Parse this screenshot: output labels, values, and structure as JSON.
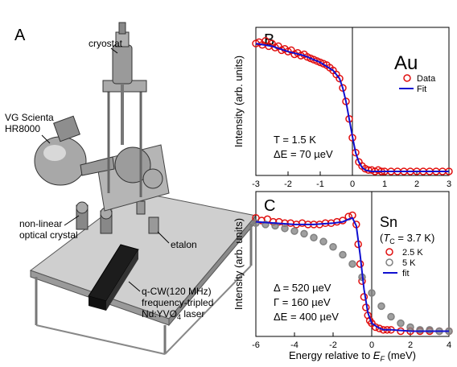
{
  "panel_a": {
    "label": "A",
    "labels": {
      "cryostat": "cryostat",
      "analyzer_line1": "VG Scienta",
      "analyzer_line2": "HR8000",
      "crystal_line1": "non-linear",
      "crystal_line2": "optical crystal",
      "etalon": "etalon",
      "laser_line1": "q-CW(120 MHz)",
      "laser_line2": "frequency-tripled",
      "laser_line3": "Nd:YVO",
      "laser_sub": "4",
      "laser_tail": " laser"
    }
  },
  "chart_data": [
    {
      "panel": "B",
      "type": "scatter",
      "title": "",
      "ylabel": "Intensity (arb. units)",
      "xlabel": "",
      "xlim": [
        -3,
        3
      ],
      "ylim": [
        0,
        1.1
      ],
      "xticks": [
        "-3",
        "-2",
        "-1",
        "0",
        "1",
        "2",
        "3"
      ],
      "sample": "Au",
      "legend": [
        "Data",
        "Fit"
      ],
      "annotation_T": "T = 1.5 K",
      "annotation_dE": "ΔE = 70 µeV",
      "series": [
        {
          "name": "Data",
          "color": "#e01010",
          "marker": "open-circle",
          "x": [
            -3.0,
            -2.9,
            -2.8,
            -2.7,
            -2.6,
            -2.5,
            -2.4,
            -2.3,
            -2.2,
            -2.1,
            -2.0,
            -1.9,
            -1.8,
            -1.7,
            -1.6,
            -1.5,
            -1.4,
            -1.3,
            -1.2,
            -1.1,
            -1.0,
            -0.9,
            -0.8,
            -0.7,
            -0.6,
            -0.5,
            -0.4,
            -0.3,
            -0.2,
            -0.1,
            0.0,
            0.1,
            0.2,
            0.3,
            0.4,
            0.5,
            0.6,
            0.7,
            0.8,
            0.9,
            1.0,
            1.2,
            1.4,
            1.6,
            1.8,
            2.0,
            2.2,
            2.4,
            2.6,
            2.8,
            3.0
          ],
          "y": [
            0.98,
            0.99,
            0.97,
            1.0,
            0.96,
            0.98,
            0.95,
            0.96,
            0.93,
            0.94,
            0.92,
            0.93,
            0.9,
            0.91,
            0.89,
            0.9,
            0.88,
            0.87,
            0.86,
            0.85,
            0.84,
            0.83,
            0.82,
            0.8,
            0.78,
            0.75,
            0.72,
            0.65,
            0.55,
            0.42,
            0.28,
            0.17,
            0.1,
            0.07,
            0.05,
            0.04,
            0.04,
            0.03,
            0.04,
            0.03,
            0.03,
            0.03,
            0.03,
            0.03,
            0.03,
            0.03,
            0.03,
            0.03,
            0.03,
            0.03,
            0.03
          ]
        },
        {
          "name": "Fit",
          "color": "#1010d0",
          "marker": "line",
          "x": [
            -3.0,
            -2.5,
            -2.0,
            -1.5,
            -1.0,
            -0.6,
            -0.4,
            -0.3,
            -0.2,
            -0.1,
            0.0,
            0.1,
            0.2,
            0.3,
            0.4,
            0.6,
            1.0,
            2.0,
            3.0
          ],
          "y": [
            0.98,
            0.96,
            0.92,
            0.89,
            0.84,
            0.78,
            0.72,
            0.65,
            0.55,
            0.42,
            0.29,
            0.17,
            0.1,
            0.06,
            0.04,
            0.03,
            0.03,
            0.03,
            0.03
          ]
        }
      ]
    },
    {
      "panel": "C",
      "type": "scatter",
      "title": "",
      "ylabel": "Intensity (arb. units)",
      "xlabel": "Energy relative to E_F (meV)",
      "xlim": [
        -6,
        4
      ],
      "ylim": [
        0,
        1.1
      ],
      "xticks": [
        "-6",
        "-4",
        "-2",
        "0",
        "2",
        "4"
      ],
      "sample": "Sn",
      "tc_label": "(T_C = 3.7 K)",
      "legend": [
        "2.5 K",
        "5 K",
        "fit"
      ],
      "annotation_delta": "Δ = 520 µeV",
      "annotation_gamma": "Γ = 160 µeV",
      "annotation_dE": "ΔE = 400 µeV",
      "series": [
        {
          "name": "2.5 K",
          "color": "#e01010",
          "marker": "open-circle",
          "x": [
            -6.0,
            -5.7,
            -5.4,
            -5.1,
            -4.8,
            -4.5,
            -4.2,
            -3.9,
            -3.6,
            -3.3,
            -3.0,
            -2.7,
            -2.4,
            -2.1,
            -1.8,
            -1.5,
            -1.2,
            -1.0,
            -0.8,
            -0.7,
            -0.6,
            -0.5,
            -0.4,
            -0.3,
            -0.2,
            -0.1,
            0.0,
            0.2,
            0.4,
            0.6,
            0.8,
            1.0,
            1.5,
            2.0,
            2.5,
            3.0,
            3.5,
            4.0
          ],
          "y": [
            0.9,
            0.88,
            0.89,
            0.87,
            0.87,
            0.86,
            0.86,
            0.85,
            0.86,
            0.85,
            0.85,
            0.85,
            0.86,
            0.86,
            0.87,
            0.88,
            0.91,
            0.92,
            0.85,
            0.7,
            0.55,
            0.42,
            0.3,
            0.22,
            0.16,
            0.12,
            0.1,
            0.07,
            0.06,
            0.05,
            0.05,
            0.05,
            0.04,
            0.04,
            0.04,
            0.04,
            0.04,
            0.04
          ]
        },
        {
          "name": "5 K",
          "color": "#808080",
          "marker": "filled-circle",
          "x": [
            -6.0,
            -5.5,
            -5.0,
            -4.5,
            -4.0,
            -3.5,
            -3.0,
            -2.5,
            -2.0,
            -1.5,
            -1.0,
            -0.5,
            0.0,
            0.5,
            1.0,
            1.5,
            2.0,
            2.5,
            3.0,
            3.5,
            4.0
          ],
          "y": [
            0.86,
            0.85,
            0.84,
            0.82,
            0.8,
            0.78,
            0.75,
            0.72,
            0.68,
            0.62,
            0.55,
            0.45,
            0.33,
            0.23,
            0.15,
            0.1,
            0.07,
            0.05,
            0.05,
            0.04,
            0.04
          ]
        },
        {
          "name": "fit",
          "color": "#1010d0",
          "marker": "line",
          "x": [
            -6.0,
            -5.0,
            -4.0,
            -3.0,
            -2.0,
            -1.5,
            -1.2,
            -1.0,
            -0.8,
            -0.6,
            -0.4,
            -0.2,
            0.0,
            0.3,
            0.6,
            1.0,
            2.0,
            3.0,
            4.0
          ],
          "y": [
            0.87,
            0.86,
            0.85,
            0.85,
            0.86,
            0.87,
            0.89,
            0.9,
            0.84,
            0.62,
            0.36,
            0.18,
            0.1,
            0.07,
            0.05,
            0.05,
            0.04,
            0.04,
            0.04
          ]
        }
      ]
    }
  ]
}
